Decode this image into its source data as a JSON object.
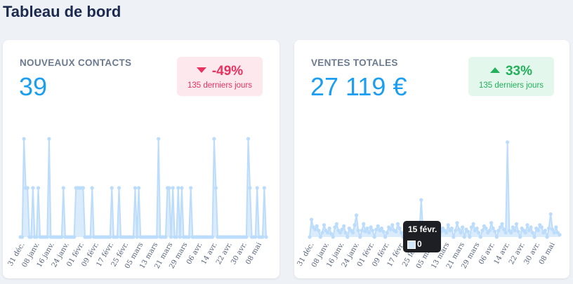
{
  "page": {
    "title": "Tableau de bord"
  },
  "colors": {
    "accent": "#1b9ef0",
    "negative": "#e8325f",
    "positive": "#22b05b",
    "series": "#bcdcfb"
  },
  "cards": [
    {
      "title": "NOUVEAUX CONTACTS",
      "value": "39",
      "delta": {
        "value": "-49%",
        "direction": "down",
        "label": "135 derniers jours"
      }
    },
    {
      "title": "VENTES TOTALES",
      "value": "27 119 €",
      "delta": {
        "value": "33%",
        "direction": "up",
        "label": "135 derniers jours"
      }
    }
  ],
  "tooltip": {
    "title": "15 févr.",
    "value": "0"
  },
  "chart_data": [
    {
      "type": "area",
      "series_name": "Nouveaux contacts",
      "ylim": [
        0,
        2
      ],
      "tick_labels": [
        "31 déc.",
        "08 janv.",
        "16 janv.",
        "24 janv.",
        "01 févr.",
        "09 févr.",
        "17 févr.",
        "25 févr.",
        "05 mars",
        "13 mars",
        "21 mars",
        "29 mars",
        "06 avr.",
        "14 avr.",
        "22 avr.",
        "30 avr.",
        "08 mai"
      ],
      "values": [
        0,
        0,
        2,
        1,
        1,
        0,
        0,
        1,
        0,
        0,
        1,
        0,
        0,
        0,
        0,
        0,
        2,
        0,
        0,
        0,
        0,
        0,
        0,
        0,
        1,
        0,
        0,
        0,
        0,
        0,
        0,
        1,
        1,
        1,
        1,
        1,
        0,
        0,
        0,
        0,
        1,
        0,
        0,
        0,
        0,
        0,
        0,
        0,
        0,
        0,
        0,
        1,
        0,
        0,
        0,
        1,
        0,
        0,
        0,
        0,
        0,
        0,
        0,
        0,
        1,
        0,
        1,
        0,
        0,
        0,
        0,
        0,
        0,
        0,
        0,
        0,
        0,
        2,
        0,
        0,
        0,
        0,
        1,
        1,
        0,
        1,
        0,
        0,
        1,
        0,
        1,
        0,
        0,
        0,
        0,
        1,
        0,
        0,
        0,
        0,
        0,
        0,
        0,
        0,
        0,
        0,
        0,
        0,
        2,
        1,
        0,
        0,
        0,
        0,
        0,
        0,
        0,
        0,
        0,
        0,
        0,
        0,
        0,
        0,
        0,
        0,
        0,
        2,
        1,
        0,
        0,
        0,
        1,
        0,
        0,
        0,
        1,
        0
      ],
      "grid": false,
      "legend": "none"
    },
    {
      "type": "area",
      "series_name": "Ventes totales",
      "ylim": [
        0,
        900
      ],
      "tick_labels": [
        "31 déc.",
        "08 janv.",
        "16 janv.",
        "24 janv.",
        "01 févr.",
        "09 févr.",
        "17 févr.",
        "25 févr.",
        "05 mars",
        "13 mars",
        "21 mars",
        "29 mars",
        "06 avr.",
        "14 avr.",
        "22 avr.",
        "30 avr.",
        "08 mai"
      ],
      "values": [
        0,
        160,
        90,
        70,
        100,
        60,
        0,
        40,
        110,
        60,
        40,
        80,
        30,
        0,
        90,
        120,
        60,
        40,
        70,
        100,
        40,
        0,
        80,
        60,
        40,
        110,
        200,
        60,
        0,
        60,
        120,
        50,
        80,
        40,
        90,
        60,
        0,
        70,
        100,
        60,
        80,
        50,
        0,
        40,
        90,
        70,
        110,
        60,
        50,
        120,
        80,
        40,
        0,
        30,
        60,
        80,
        40,
        0,
        60,
        90,
        110,
        40,
        340,
        60,
        40,
        0,
        70,
        100,
        60,
        40,
        80,
        60,
        0,
        50,
        80,
        60,
        40,
        110,
        60,
        80,
        0,
        60,
        130,
        70,
        40,
        90,
        0,
        70,
        50,
        0,
        90,
        120,
        60,
        80,
        40,
        0,
        60,
        100,
        80,
        40,
        60,
        130,
        80,
        50,
        0,
        60,
        90,
        120,
        70,
        40,
        870,
        60,
        40,
        90,
        60,
        120,
        50,
        0,
        80,
        60,
        40,
        110,
        60,
        90,
        40,
        0,
        80,
        60,
        110,
        90,
        40,
        60,
        0,
        80,
        210,
        70,
        40,
        90,
        40,
        20
      ],
      "grid": false,
      "legend": "none"
    }
  ]
}
